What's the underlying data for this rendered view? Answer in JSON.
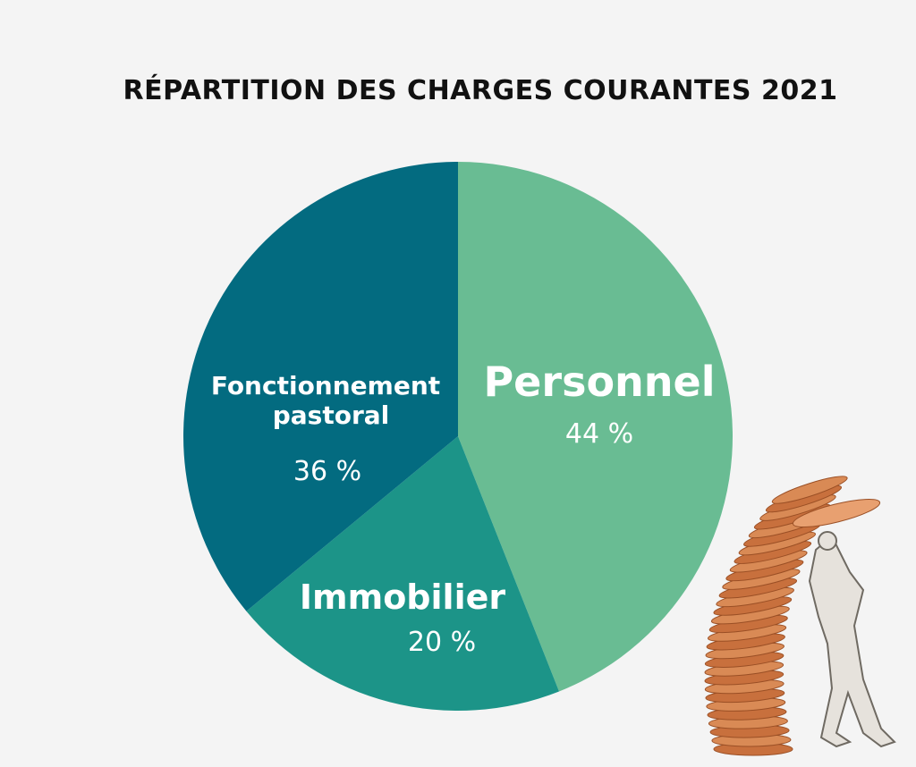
{
  "chart_data": {
    "type": "pie",
    "title": "RÉPARTITION DES CHARGES COURANTES 2021",
    "slices": [
      {
        "label": "Personnel",
        "label_lines": [
          "Personnel"
        ],
        "value": 44,
        "value_text": "44 %",
        "color": "#69bc93"
      },
      {
        "label": "Immobilier",
        "label_lines": [
          "Immobilier"
        ],
        "value": 20,
        "value_text": "20 %",
        "color": "#1c9488"
      },
      {
        "label": "Fonctionnement pastoral",
        "label_lines": [
          "Fonctionnement",
          "pastoral"
        ],
        "value": 36,
        "value_text": "36 %",
        "color": "#036b80"
      }
    ],
    "start": "12 o'clock",
    "direction": "clockwise",
    "legend": "none"
  },
  "colors": {
    "background": "#f4f4f4",
    "text_dark": "#111111",
    "text_light": "#ffffff"
  },
  "decoration": {
    "illustration": "coin-stack-figure-icon"
  }
}
